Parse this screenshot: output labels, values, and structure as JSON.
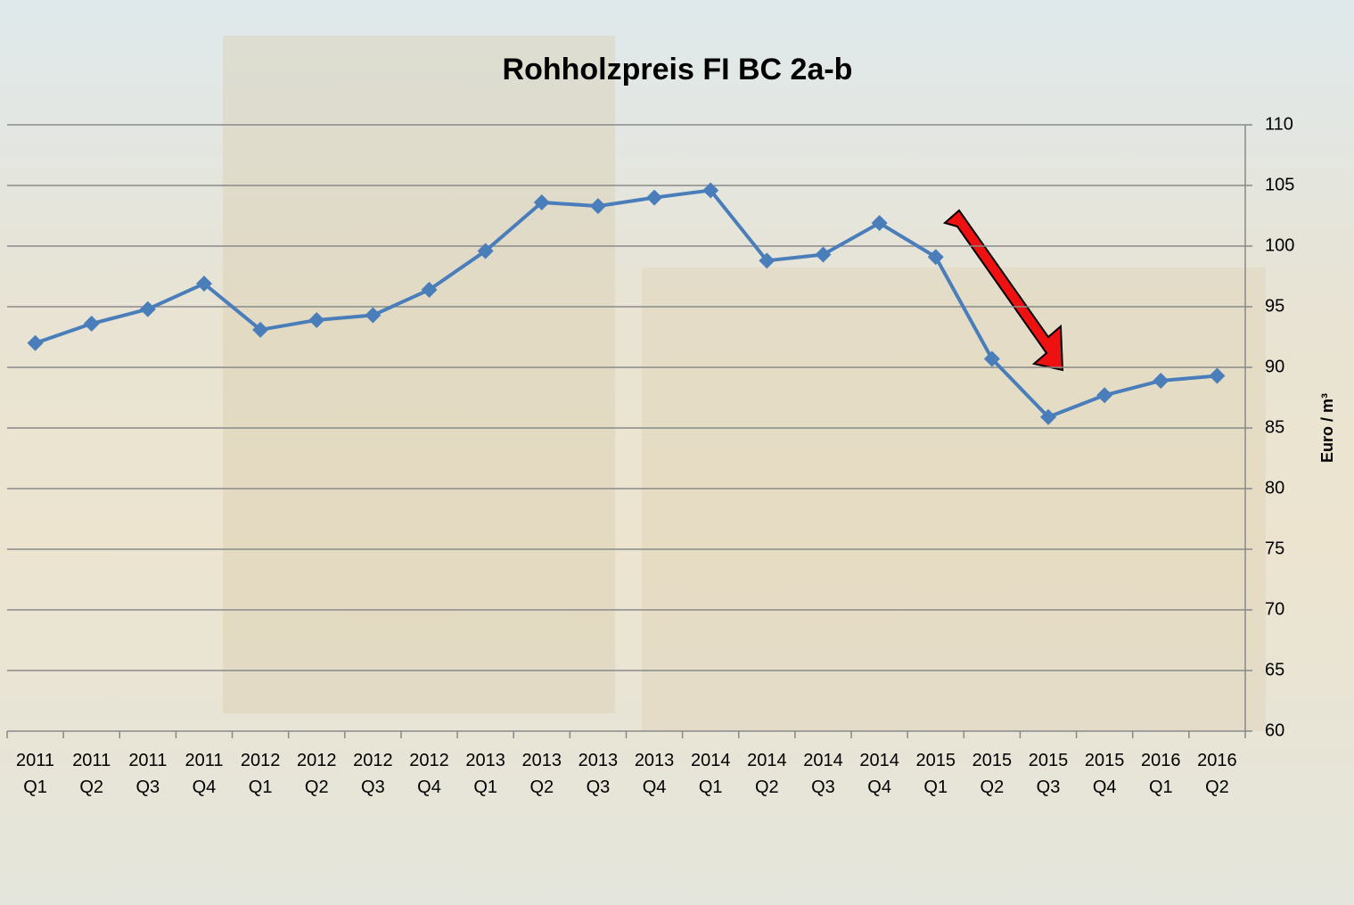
{
  "chart_data": {
    "type": "line",
    "title": "Rohholzpreis  FI BC 2a-b",
    "y_label": "Euro / m³",
    "categories": [
      "2011 Q1",
      "2011 Q2",
      "2011 Q3",
      "2011 Q4",
      "2012 Q1",
      "2012 Q2",
      "2012 Q3",
      "2012 Q4",
      "2013 Q1",
      "2013 Q2",
      "2013 Q3",
      "2013 Q4",
      "2014 Q1",
      "2014 Q2",
      "2014 Q3",
      "2014 Q4",
      "2015 Q1",
      "2015 Q2",
      "2015 Q3",
      "2015 Q4",
      "2016 Q1",
      "2016 Q2"
    ],
    "values": [
      92.0,
      93.6,
      94.8,
      96.9,
      93.1,
      93.9,
      94.3,
      96.4,
      99.6,
      103.6,
      103.3,
      104.0,
      104.6,
      98.8,
      99.3,
      101.9,
      99.1,
      90.7,
      85.9,
      87.7,
      88.9,
      89.3
    ],
    "color": "#4a7ebb",
    "ylim": [
      60,
      110
    ],
    "yticks": [
      60,
      65,
      70,
      75,
      80,
      85,
      90,
      95,
      100,
      105,
      110
    ],
    "grid": true,
    "y_axis_side": "right"
  }
}
